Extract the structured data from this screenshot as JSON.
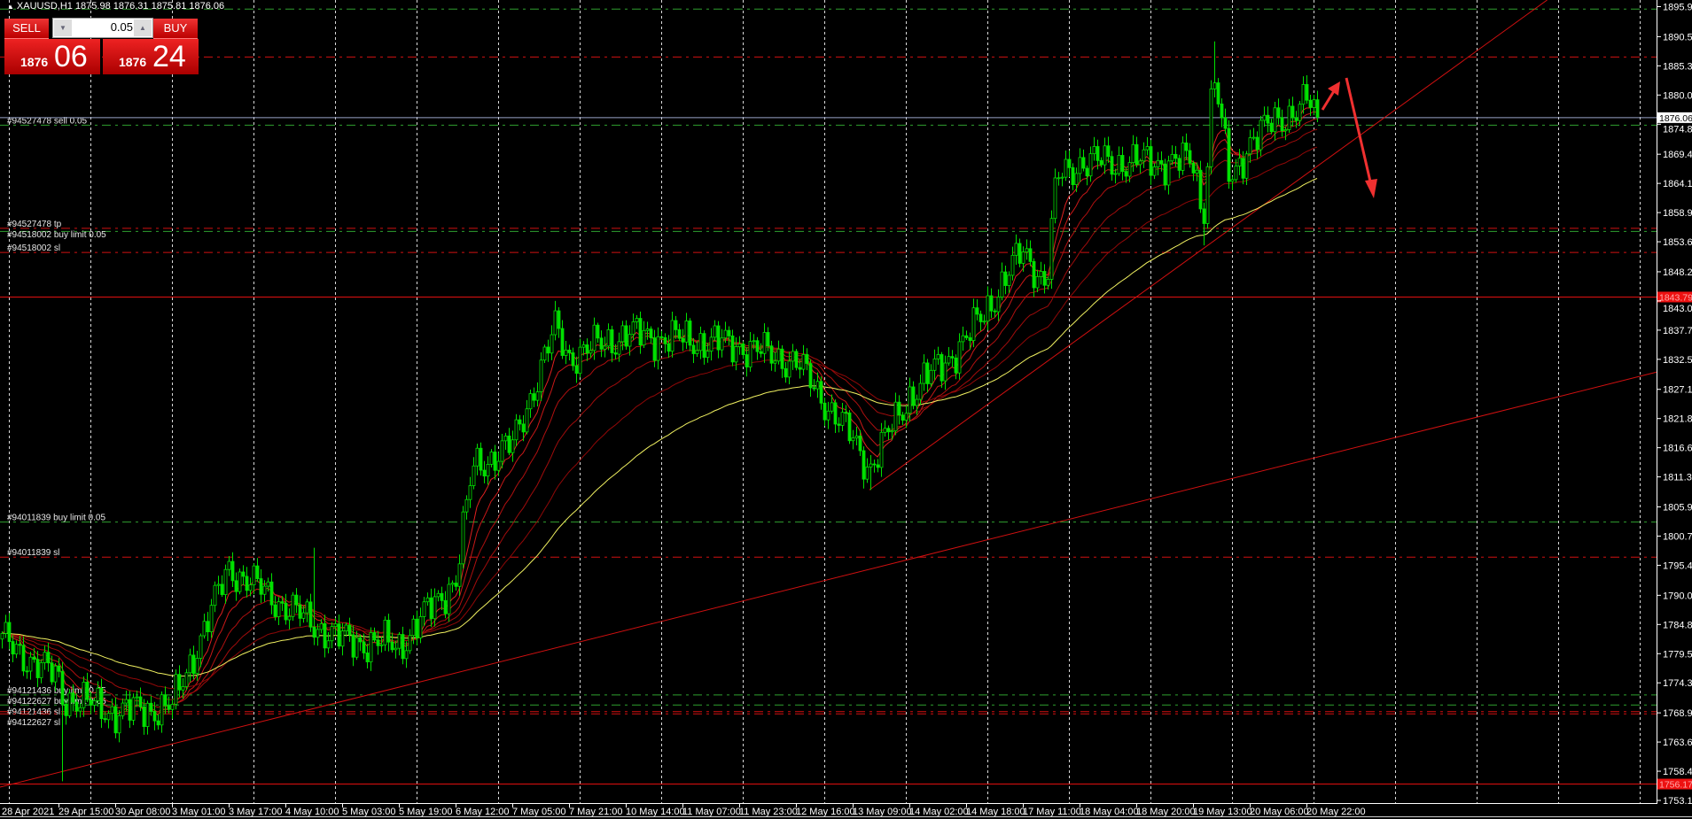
{
  "header": {
    "symbol_line": "XAUUSD,H1  1875.98 1876.31 1875.81 1876.06"
  },
  "trade_panel": {
    "sell_label": "SELL",
    "buy_label": "BUY",
    "lot_value": "0.05",
    "sell_price_prefix": "1876",
    "sell_price_big": "06",
    "buy_price_prefix": "1876",
    "buy_price_big": "24"
  },
  "colors": {
    "background": "#000000",
    "candle": "#00e000",
    "ma_red": "#cc1010",
    "ma_yellow": "#f0f060",
    "order_green": "#2fa02f",
    "order_red": "#d01010",
    "trendline": "#d01010",
    "grid": "#ffffff",
    "arrow": "#f03030"
  },
  "chart_data": {
    "type": "candlestick",
    "symbol": "XAUUSD",
    "timeframe": "H1",
    "ylim": [
      1753.15,
      1895.95
    ],
    "grid": "vertical dashed",
    "price_ticks": [
      "1895.95",
      "1890.55",
      "1885.30",
      "1880.05",
      "1874.80",
      "1869.40",
      "1864.15",
      "1858.90",
      "1853.65",
      "1848.25",
      "1843.00",
      "1837.75",
      "1832.50",
      "1827.10",
      "1821.85",
      "1816.60",
      "1811.35",
      "1805.95",
      "1800.70",
      "1795.45",
      "1790.05",
      "1784.80",
      "1779.55",
      "1774.30",
      "1768.90",
      "1763.65",
      "1758.40",
      "1753.15"
    ],
    "time_ticks": [
      "28 Apr 2021",
      "29 Apr 15:00",
      "30 Apr 08:00",
      "3 May 01:00",
      "3 May 17:00",
      "4 May 10:00",
      "5 May 03:00",
      "5 May 19:00",
      "6 May 12:00",
      "7 May 05:00",
      "7 May 21:00",
      "10 May 14:00",
      "11 May 07:00",
      "11 May 23:00",
      "12 May 16:00",
      "13 May 09:00",
      "14 May 02:00",
      "14 May 18:00",
      "17 May 11:00",
      "18 May 04:00",
      "18 May 20:00",
      "19 May 13:00",
      "20 May 06:00",
      "20 May 22:00"
    ],
    "close_path": [
      {
        "t": "28 Apr 23:00",
        "c": 1782
      },
      {
        "t": "29 Apr 15:00",
        "c": 1775
      },
      {
        "t": "29 Apr 16:00",
        "c": 1772,
        "low": 1756.6
      },
      {
        "t": "30 Apr 08:00",
        "c": 1769
      },
      {
        "t": "3 May 01:00",
        "c": 1770
      },
      {
        "t": "3 May 17:00",
        "c": 1795
      },
      {
        "t": "4 May 10:00",
        "c": 1788
      },
      {
        "t": "4 May 18:00",
        "c": 1785,
        "high": 1798.6
      },
      {
        "t": "5 May 03:00",
        "c": 1782
      },
      {
        "t": "5 May 19:00",
        "c": 1781
      },
      {
        "t": "6 May 12:00",
        "c": 1793
      },
      {
        "t": "6 May 17:00",
        "c": 1813
      },
      {
        "t": "7 May 05:00",
        "c": 1817
      },
      {
        "t": "7 May 17:00",
        "c": 1838,
        "high": 1843
      },
      {
        "t": "7 May 21:00",
        "c": 1833
      },
      {
        "t": "10 May 14:00",
        "c": 1837
      },
      {
        "t": "11 May 07:00",
        "c": 1836
      },
      {
        "t": "11 May 23:00",
        "c": 1835
      },
      {
        "t": "12 May 16:00",
        "c": 1832
      },
      {
        "t": "13 May 09:00",
        "c": 1818
      },
      {
        "t": "13 May 14:00",
        "c": 1813,
        "low": 1809
      },
      {
        "t": "14 May 02:00",
        "c": 1826
      },
      {
        "t": "14 May 18:00",
        "c": 1836
      },
      {
        "t": "17 May 11:00",
        "c": 1852
      },
      {
        "t": "17 May 18:00",
        "c": 1846
      },
      {
        "t": "17 May 21:00",
        "c": 1865
      },
      {
        "t": "18 May 04:00",
        "c": 1868
      },
      {
        "t": "18 May 20:00",
        "c": 1868
      },
      {
        "t": "19 May 13:00",
        "c": 1868
      },
      {
        "t": "19 May 16:00",
        "c": 1858,
        "low": 1853
      },
      {
        "t": "19 May 19:00",
        "c": 1885,
        "high": 1889.7
      },
      {
        "t": "20 May 00:00",
        "c": 1864
      },
      {
        "t": "20 May 06:00",
        "c": 1872
      },
      {
        "t": "20 May 22:00",
        "c": 1879
      },
      {
        "t": "21 May 01:00",
        "c": 1876.06
      }
    ],
    "moving_averages": [
      {
        "color": "#e02020",
        "period": 8
      },
      {
        "color": "#c81818",
        "period": 13
      },
      {
        "color": "#b01010",
        "period": 21
      },
      {
        "color": "#a00c0c",
        "period": 34
      },
      {
        "color": "#900808",
        "period": 55
      },
      {
        "color": "#f0f060",
        "period": 89
      }
    ],
    "current_price": {
      "label": "1876.06",
      "color": "#9aa4c8"
    },
    "price_markers": [
      {
        "label": "1843.79",
        "price": 1843.79
      },
      {
        "label": "1756.17",
        "price": 1756.17
      }
    ],
    "order_lines": [
      {
        "price": 1895.6,
        "color": "green",
        "label": ""
      },
      {
        "price": 1886.97,
        "color": "red",
        "label": ""
      },
      {
        "price": 1874.7,
        "color": "green",
        "label": "#94527478 sell 0.05"
      },
      {
        "price": 1856.15,
        "color": "red",
        "label": "#94527478 tp"
      },
      {
        "price": 1855.6,
        "color": "green",
        "label": "#94518002 buy limit 0.05"
      },
      {
        "price": 1851.8,
        "color": "red",
        "label": "#94518002 sl"
      },
      {
        "price": 1803.3,
        "color": "green",
        "label": "#94011839 buy limit 0.05"
      },
      {
        "price": 1797.0,
        "color": "red",
        "label": "#94011839 sl"
      },
      {
        "price": 1772.2,
        "color": "green",
        "label": "#94121436 buy limit 0.05"
      },
      {
        "price": 1770.4,
        "color": "green",
        "label": "#94122627 buy limit 0.05"
      },
      {
        "price": 1769.2,
        "color": "red",
        "label": "#94121436 sl"
      },
      {
        "price": 1768.8,
        "color": "red",
        "label": "#94122627 sl"
      }
    ],
    "trendlines": [
      {
        "from": {
          "t": "28 Apr 23:00",
          "p": 1754.5
        },
        "to_right_edge_price": 1830.2
      },
      {
        "from": {
          "t": "13 May 14:00",
          "p": 1809
        },
        "through_top_price": 1895.95
      }
    ]
  }
}
